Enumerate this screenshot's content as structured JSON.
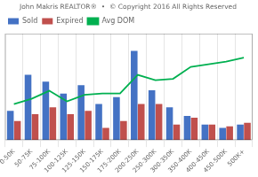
{
  "chart_data": {
    "type": "bar",
    "title": "John Makris REALTOR®  •  © Copyright 2016 All Rights Reserved",
    "categories": [
      "0-50K",
      "50-75K",
      "75-100K",
      "100-125K",
      "125-150K",
      "150-175K",
      "175-200K",
      "200-250K",
      "250-300K",
      "300-350K",
      "350-400K",
      "400-450K",
      "450-500K",
      "500K+"
    ],
    "series": [
      {
        "name": "Sold",
        "color": "#4472C4",
        "values": [
          17,
          38,
          34,
          27,
          32,
          21,
          25,
          52,
          29,
          19,
          14,
          9,
          7,
          9
        ]
      },
      {
        "name": "Expired",
        "color": "#C0504D",
        "values": [
          11,
          15,
          19,
          15,
          17,
          7,
          11,
          21,
          21,
          9,
          13,
          9,
          8,
          10
        ]
      },
      {
        "name": "Avg DOM",
        "type": "line",
        "axis": "y2",
        "color": "#00B050",
        "values": [
          27,
          31,
          37,
          29,
          34,
          35,
          35,
          49,
          45,
          46,
          55,
          57,
          59,
          62
        ]
      }
    ],
    "ylim": [
      0,
      62
    ],
    "y2lim": [
      0,
      80
    ],
    "grid": true,
    "legend": "upper left",
    "tick_labels": "x"
  }
}
